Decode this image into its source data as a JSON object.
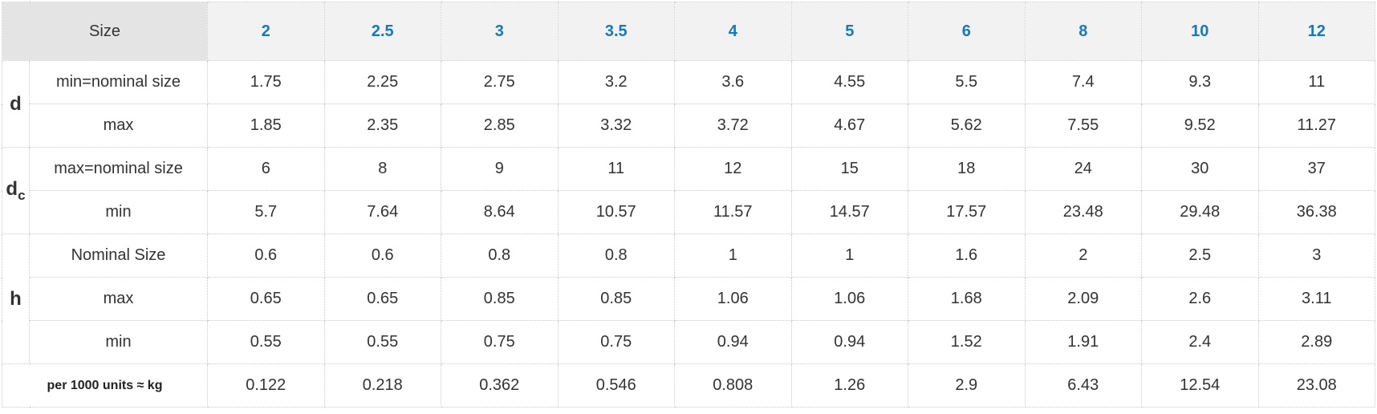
{
  "table": {
    "size_label": "Size",
    "sizes": [
      "2",
      "2.5",
      "3",
      "3.5",
      "4",
      "5",
      "6",
      "8",
      "10",
      "12"
    ],
    "groups": [
      {
        "label": "d",
        "subscript": "",
        "rows": [
          {
            "label": "min=nominal size",
            "values": [
              "1.75",
              "2.25",
              "2.75",
              "3.2",
              "3.6",
              "4.55",
              "5.5",
              "7.4",
              "9.3",
              "11"
            ]
          },
          {
            "label": "max",
            "values": [
              "1.85",
              "2.35",
              "2.85",
              "3.32",
              "3.72",
              "4.67",
              "5.62",
              "7.55",
              "9.52",
              "11.27"
            ]
          }
        ]
      },
      {
        "label": "d",
        "subscript": "c",
        "rows": [
          {
            "label": "max=nominal size",
            "values": [
              "6",
              "8",
              "9",
              "11",
              "12",
              "15",
              "18",
              "24",
              "30",
              "37"
            ]
          },
          {
            "label": "min",
            "values": [
              "5.7",
              "7.64",
              "8.64",
              "10.57",
              "11.57",
              "14.57",
              "17.57",
              "23.48",
              "29.48",
              "36.38"
            ]
          }
        ]
      },
      {
        "label": "h",
        "subscript": "",
        "rows": [
          {
            "label": "Nominal Size",
            "values": [
              "0.6",
              "0.6",
              "0.8",
              "0.8",
              "1",
              "1",
              "1.6",
              "2",
              "2.5",
              "3"
            ]
          },
          {
            "label": "max",
            "values": [
              "0.65",
              "0.65",
              "0.85",
              "0.85",
              "1.06",
              "1.06",
              "1.68",
              "2.09",
              "2.6",
              "3.11"
            ]
          },
          {
            "label": "min",
            "values": [
              "0.55",
              "0.55",
              "0.75",
              "0.75",
              "0.94",
              "0.94",
              "1.52",
              "1.91",
              "2.4",
              "2.89"
            ]
          }
        ]
      }
    ],
    "weight": {
      "label": "per 1000 units ≈ kg",
      "values": [
        "0.122",
        "0.218",
        "0.362",
        "0.546",
        "0.808",
        "1.26",
        "2.9",
        "6.43",
        "12.54",
        "23.08"
      ]
    }
  }
}
